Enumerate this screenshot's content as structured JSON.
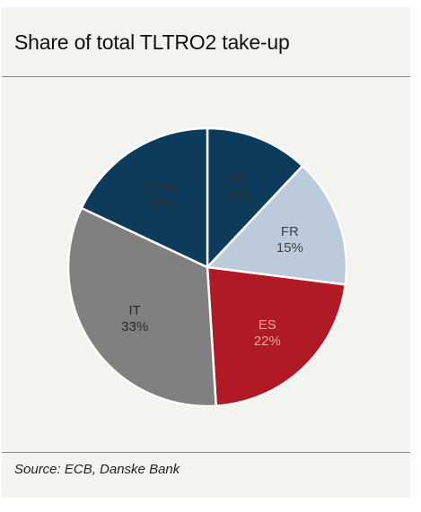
{
  "header": {
    "title": "Share of total TLTRO2 take-up"
  },
  "footer": {
    "source": "Source: ECB, Danske Bank"
  },
  "chart_data": {
    "type": "pie",
    "title": "Share of total TLTRO2 take-up",
    "unit": "%",
    "slices": [
      {
        "label": "DE",
        "value": 12,
        "value_label": "12%",
        "color": "#0d3b5c",
        "text_color": "#333333"
      },
      {
        "label": "FR",
        "value": 15,
        "value_label": "15%",
        "color": "#bccbdb",
        "text_color": "#444444"
      },
      {
        "label": "ES",
        "value": 22,
        "value_label": "22%",
        "color": "#b01a24",
        "text_color": "#e3a6a8"
      },
      {
        "label": "IT",
        "value": 33,
        "value_label": "33%",
        "color": "#808080",
        "text_color": "#2a2a2a"
      },
      {
        "label": "Other",
        "value": 18,
        "value_label": "18%",
        "color": "#0d3b5c",
        "text_color": "#333333"
      }
    ],
    "start_angle_deg": 0,
    "direction": "clockwise",
    "legend": "none"
  }
}
